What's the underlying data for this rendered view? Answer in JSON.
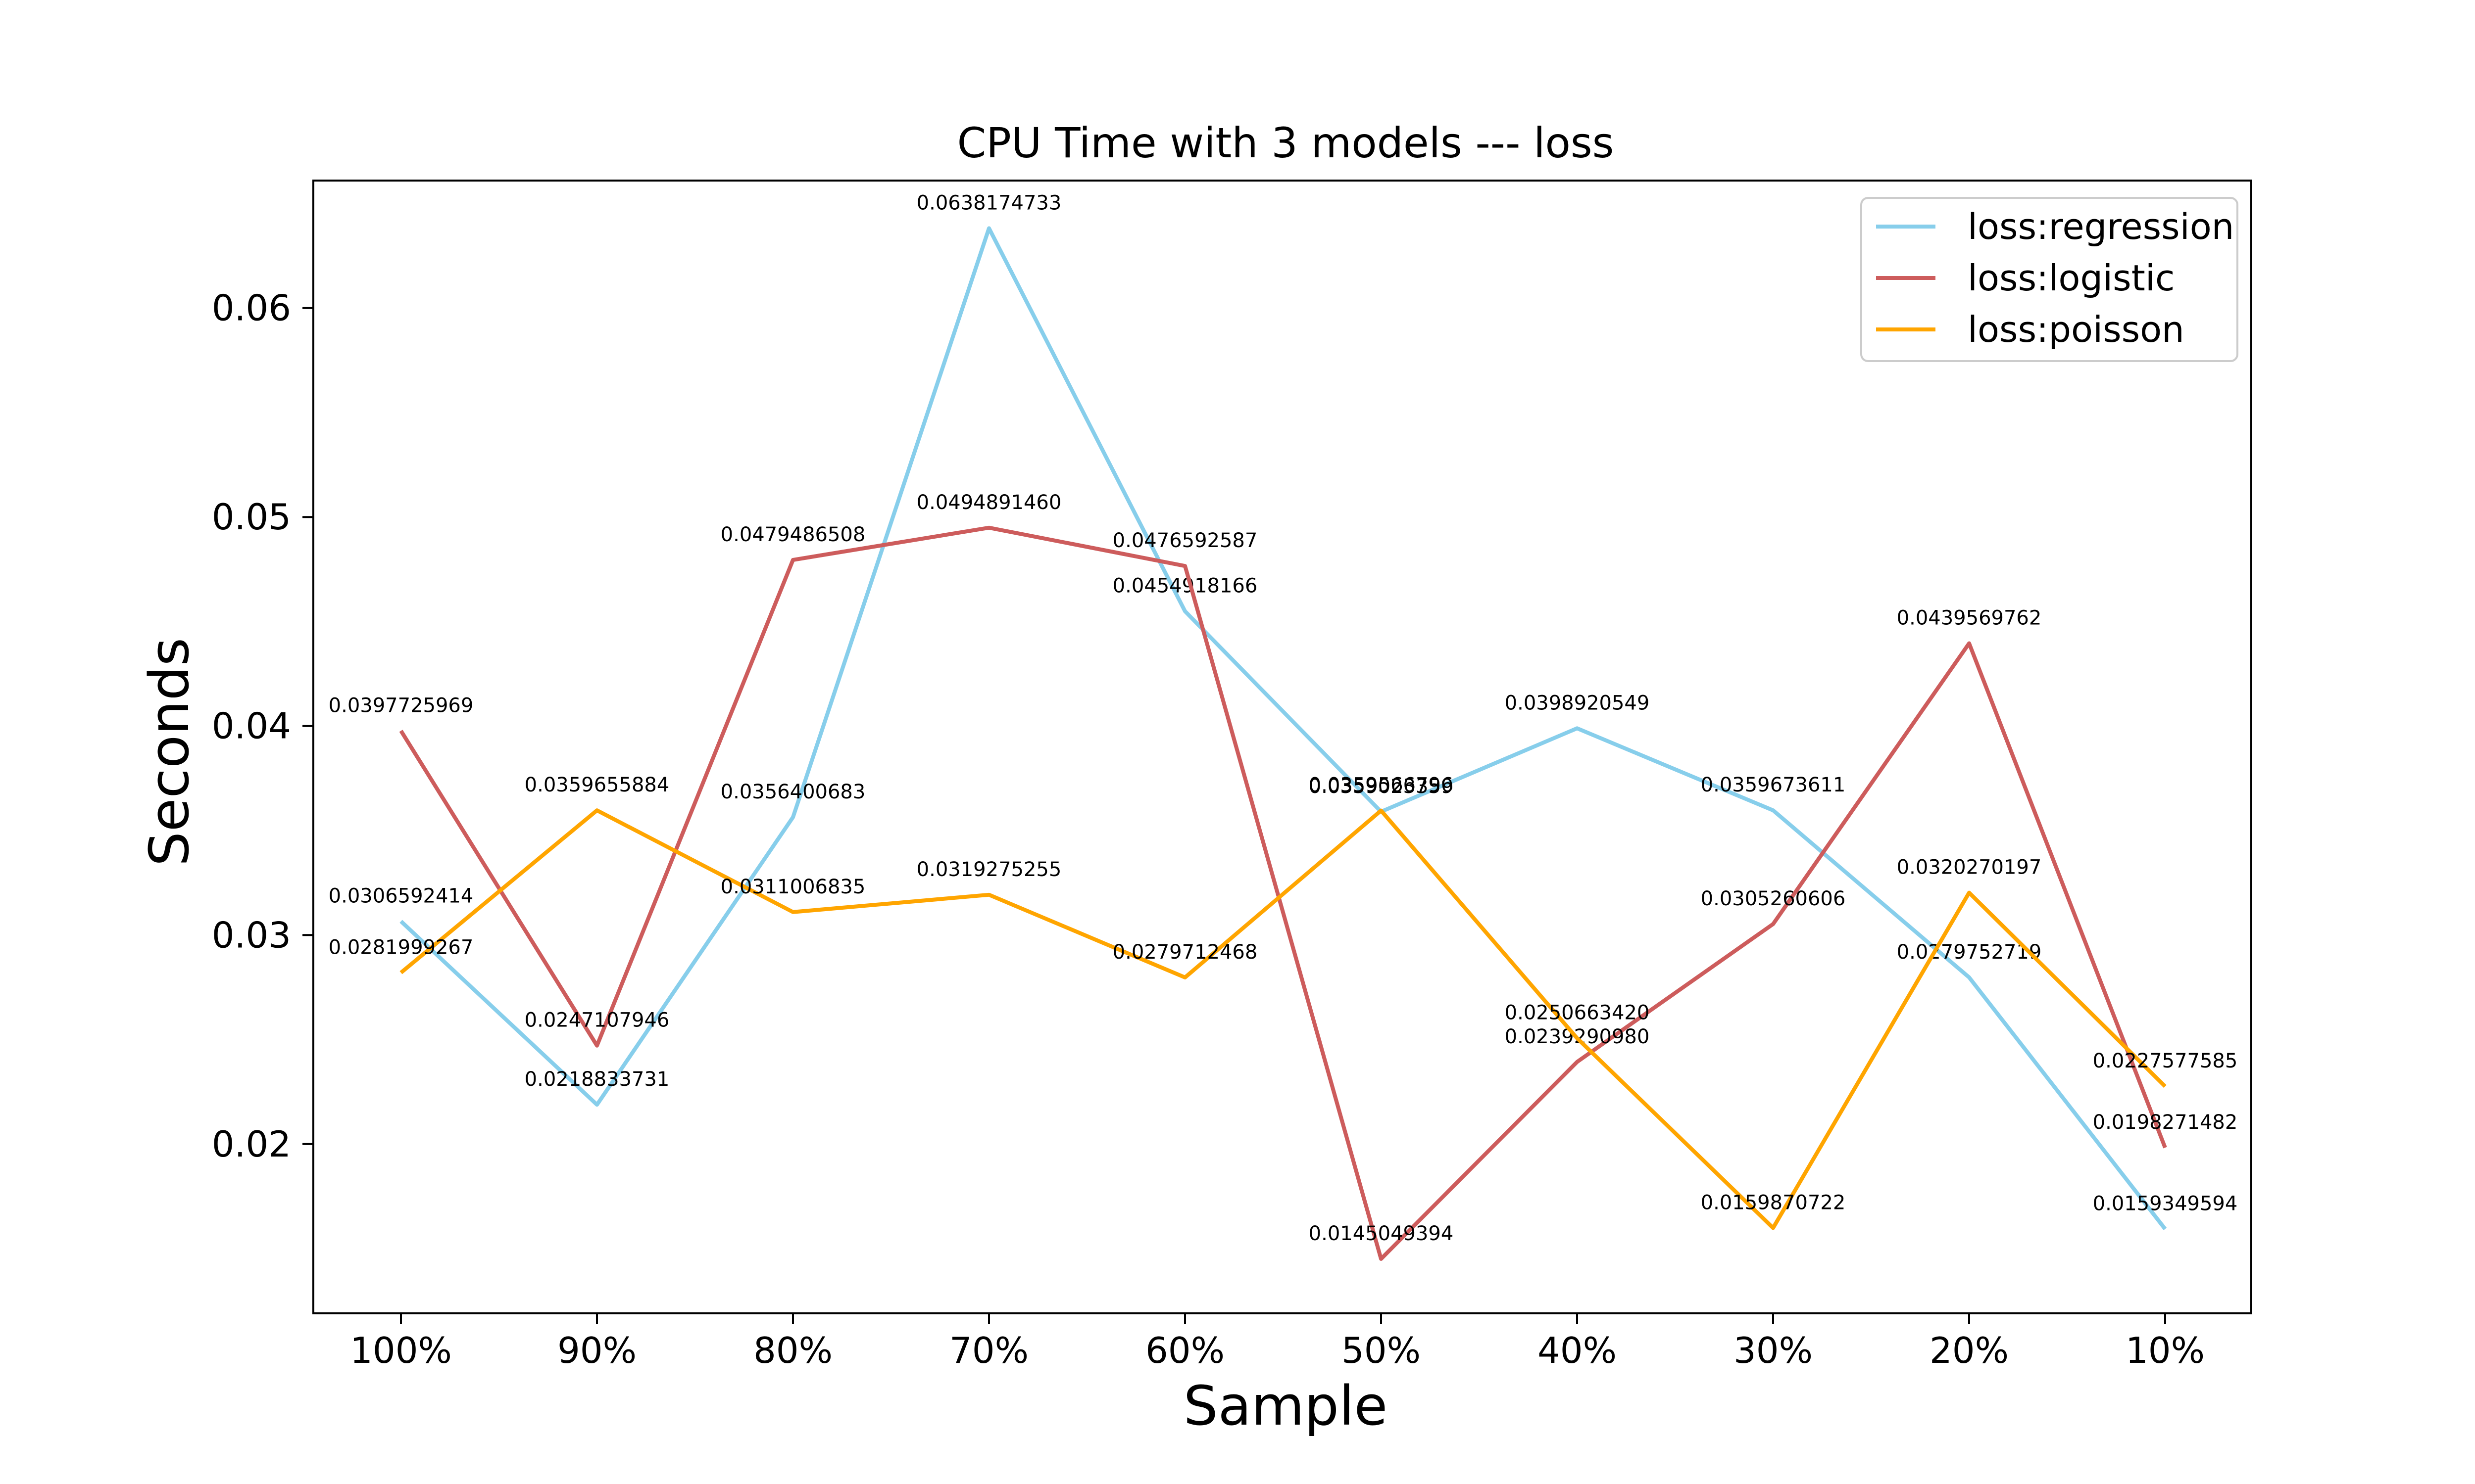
{
  "chart_data": {
    "type": "line",
    "title": "CPU Time with 3 models --- loss",
    "xlabel": "Sample",
    "ylabel": "Seconds",
    "categories": [
      "100%",
      "90%",
      "80%",
      "70%",
      "60%",
      "50%",
      "40%",
      "30%",
      "20%",
      "10%"
    ],
    "ylim": [
      0.0119,
      0.0661
    ],
    "yticks": [
      0.02,
      0.03,
      0.04,
      0.05,
      0.06
    ],
    "ytick_labels": [
      "0.02",
      "0.03",
      "0.04",
      "0.05",
      "0.06"
    ],
    "grid": false,
    "legend": "top-right",
    "series": [
      {
        "name": "loss:regression",
        "color": "#87CEEB",
        "values": [
          0.0306592414,
          0.0218833731,
          0.0356400683,
          0.0638174733,
          0.0454918166,
          0.0359023359,
          0.0398920549,
          0.0359673611,
          0.0279752719,
          0.0159349594
        ],
        "labels": [
          "0.0306592414",
          "0.0218833731",
          "0.0356400683",
          "0.0638174733",
          "0.0454918166",
          "0.0359023359",
          "0.0398920549",
          "0.0359673611",
          "0.0279752719",
          "0.0159349594"
        ]
      },
      {
        "name": "loss:logistic",
        "color": "#CD5C5C",
        "values": [
          0.0397725969,
          0.0247107946,
          0.0479486508,
          0.049489146,
          0.0476592587,
          0.0145049394,
          0.023929098,
          0.0305260606,
          0.0439569762,
          0.0198271482
        ],
        "labels": [
          "0.0397725969",
          "0.0247107946",
          "0.0479486508",
          "0.0494891460",
          "0.0476592587",
          "0.0145049394",
          "0.0239290980",
          "0.0305260606",
          "0.0439569762",
          "0.0198271482"
        ]
      },
      {
        "name": "loss:poisson",
        "color": "#FFA500",
        "values": [
          0.0281999267,
          0.0359655884,
          0.0311006835,
          0.0319275255,
          0.0279712468,
          0.0359566796,
          0.025066342,
          0.0159870722,
          0.0320270197,
          0.0227577585
        ],
        "labels": [
          "0.0281999267",
          "0.0359655884",
          "0.0311006835",
          "0.0319275255",
          "0.0279712468",
          "0.0359566796",
          "0.0250663420",
          "0.0159870722",
          "0.0320270197",
          "0.0227577585"
        ]
      }
    ]
  }
}
